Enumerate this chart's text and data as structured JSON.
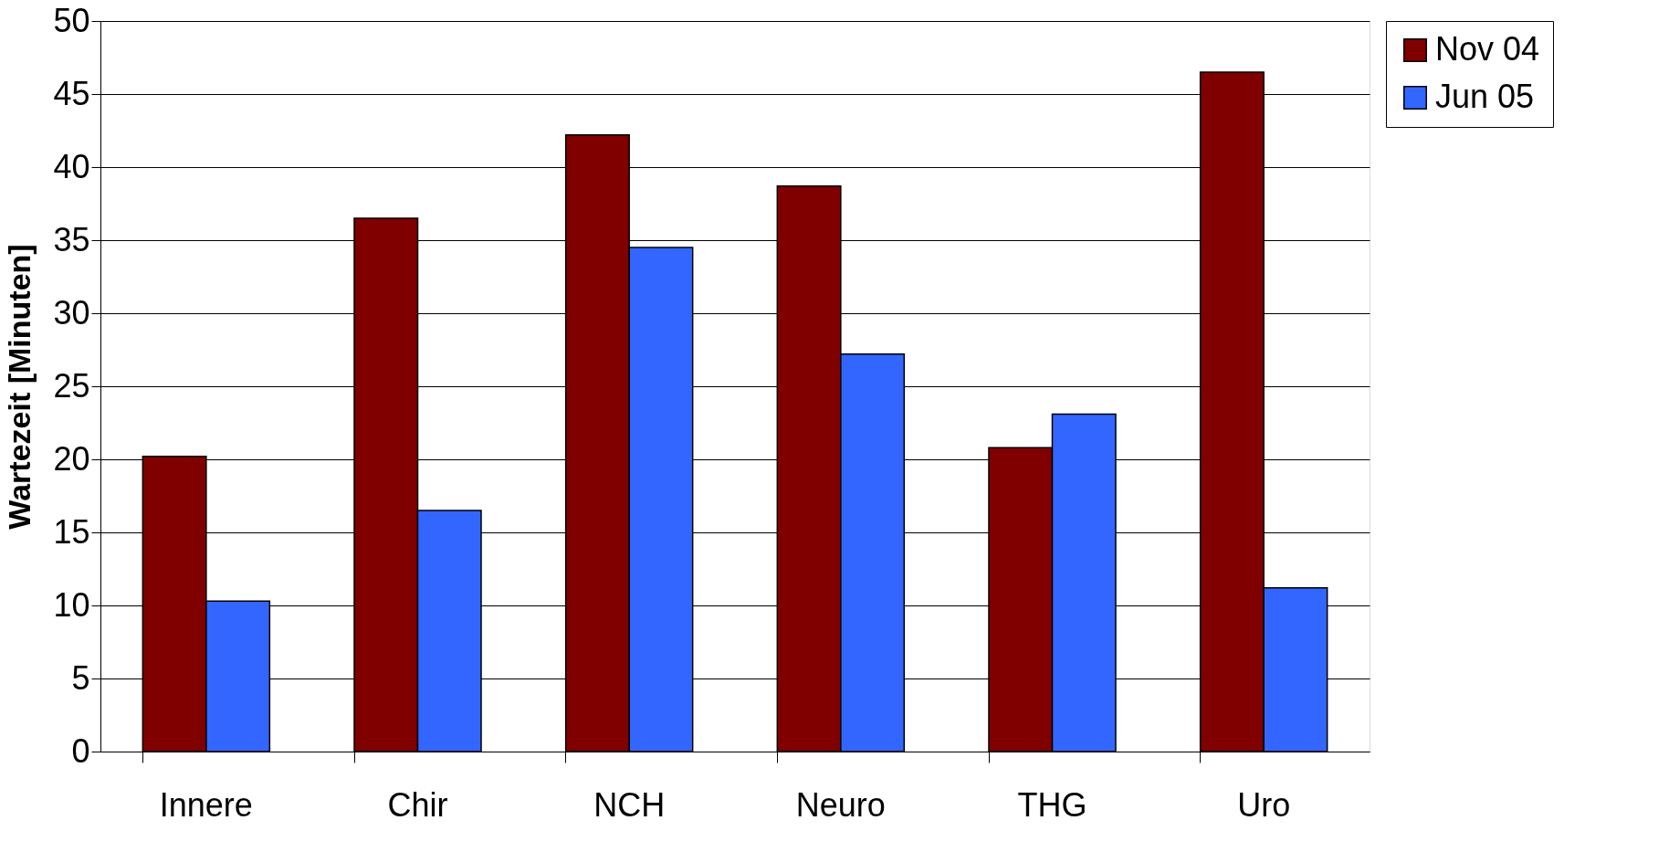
{
  "chart_data": {
    "type": "bar",
    "ylabel": "Wartezeit [Minuten]",
    "categories": [
      "Innere",
      "Chir",
      "NCH",
      "Neuro",
      "THG",
      "Uro"
    ],
    "series": [
      {
        "name": "Nov 04",
        "color": "#800000",
        "values": [
          20.2,
          36.5,
          42.2,
          38.7,
          20.8,
          46.5
        ]
      },
      {
        "name": "Jun 05",
        "color": "#3366ff",
        "values": [
          10.3,
          16.5,
          34.5,
          27.2,
          23.1,
          11.2
        ]
      }
    ],
    "ylim": [
      0,
      50
    ],
    "yticks": [
      0,
      5,
      10,
      15,
      20,
      25,
      30,
      35,
      40,
      45,
      50
    ],
    "grid": "y",
    "legend": "right"
  }
}
